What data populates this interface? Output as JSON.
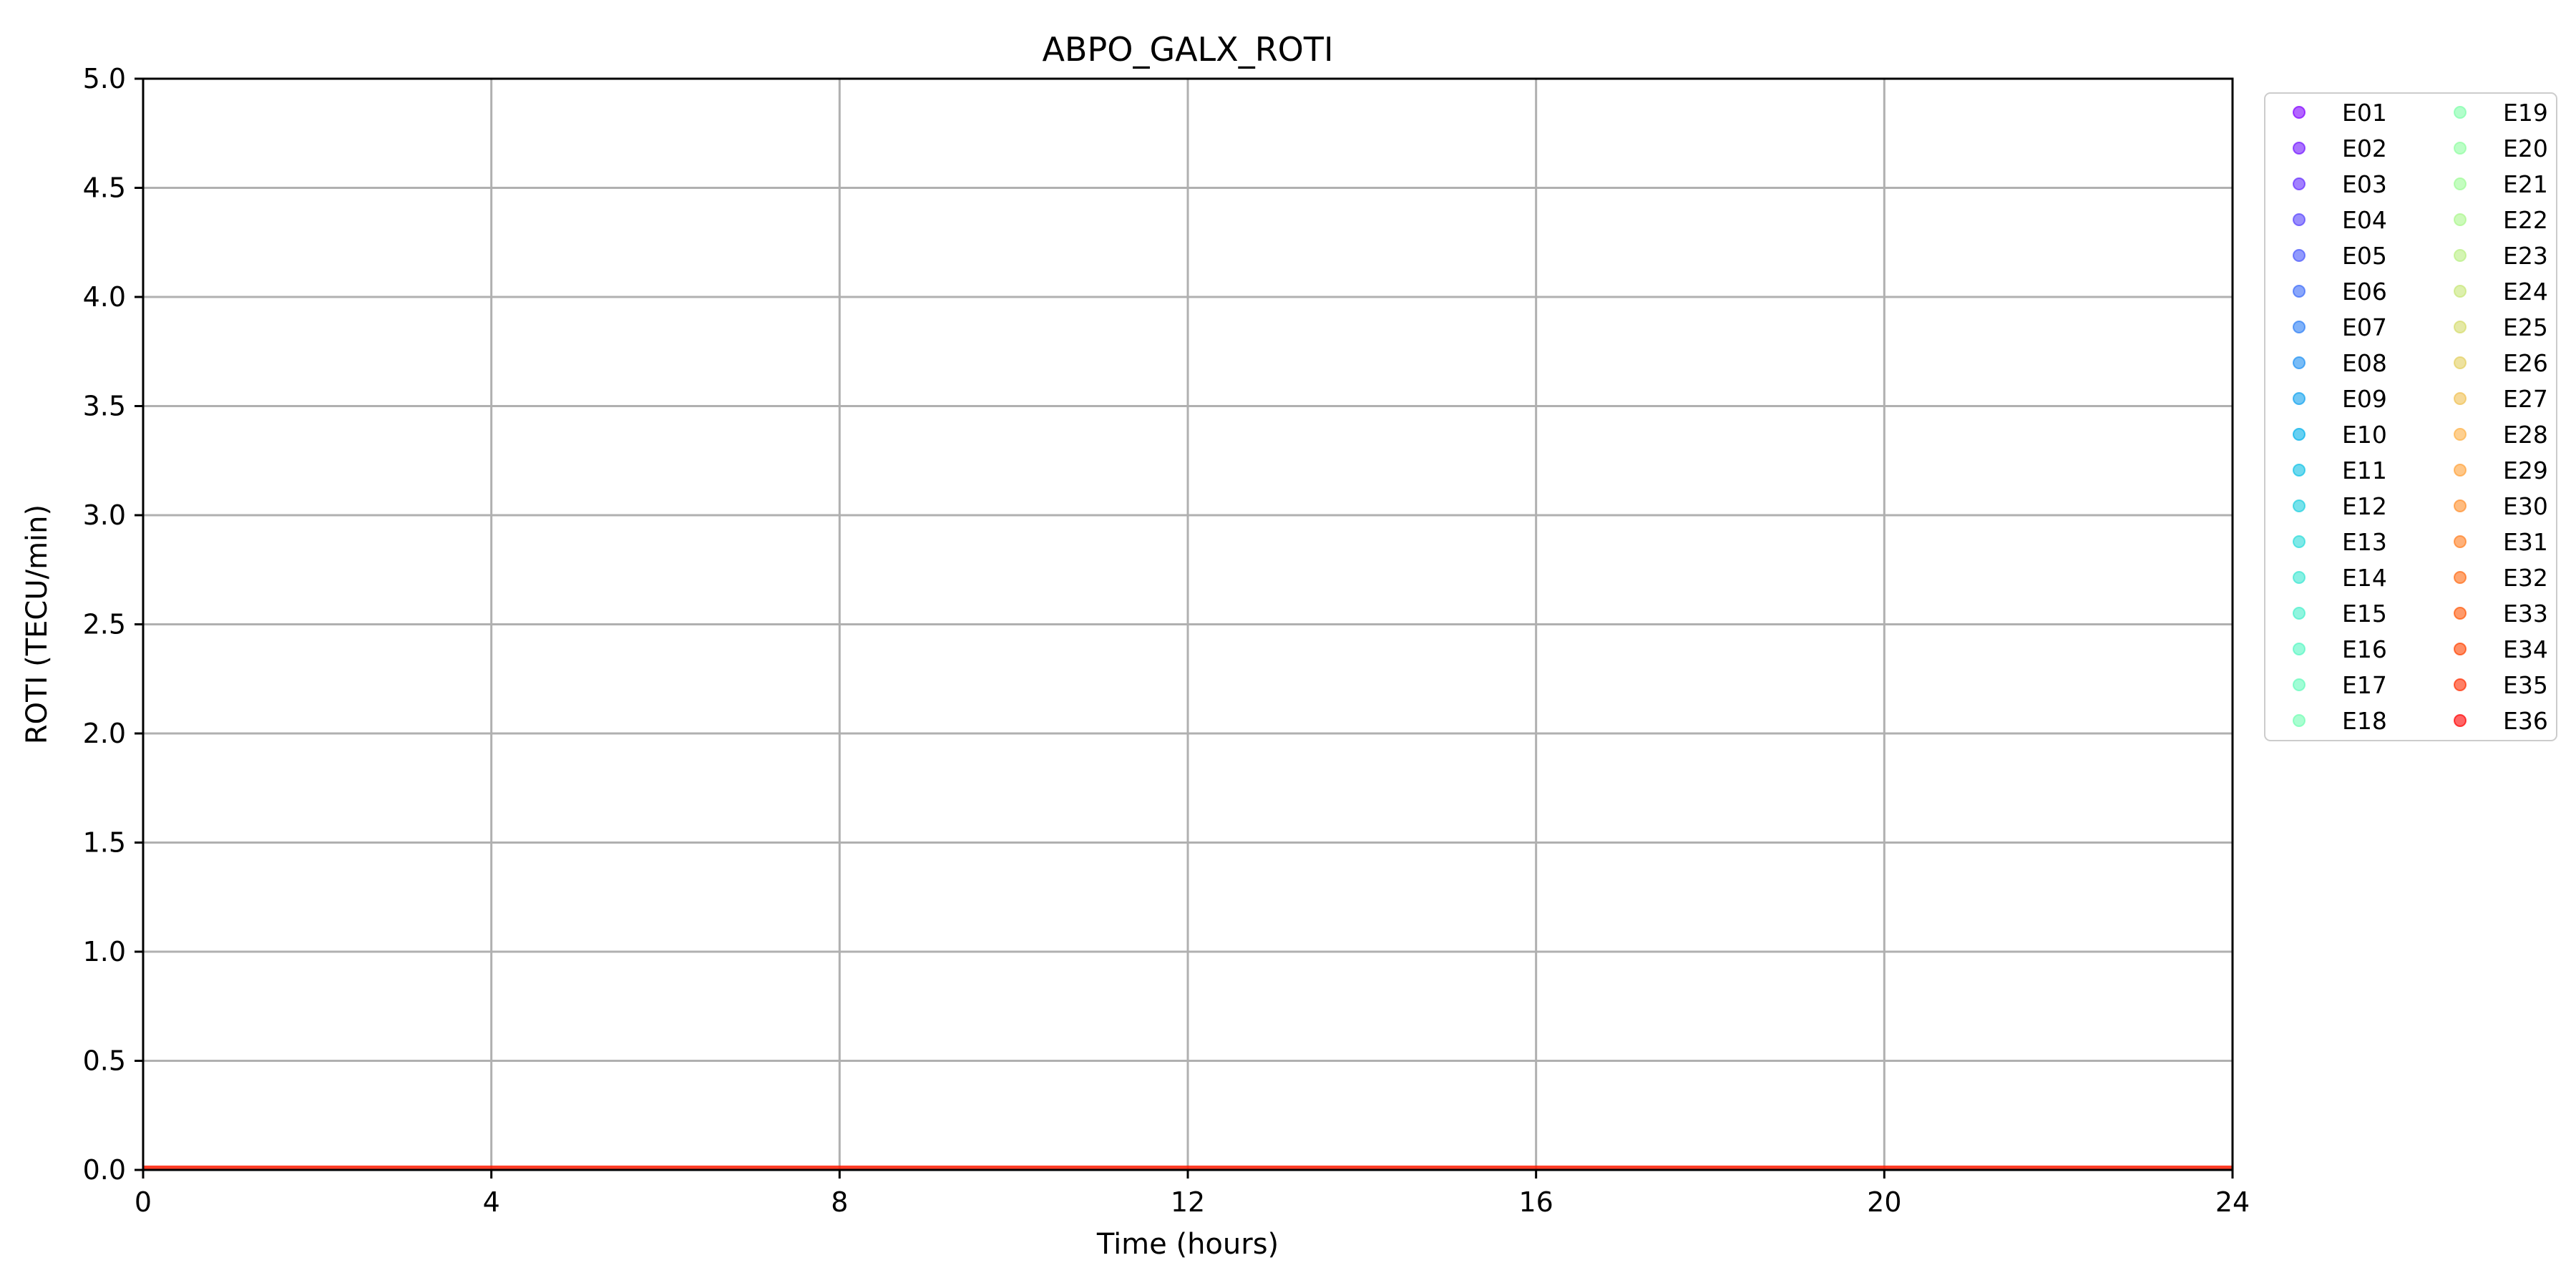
{
  "chart_data": {
    "type": "scatter",
    "title": "ABPO_GALX_ROTI",
    "xlabel": "Time (hours)",
    "ylabel": "ROTI (TECU/min)",
    "xlim": [
      0,
      24
    ],
    "ylim": [
      0,
      5
    ],
    "xticks": [
      0,
      4,
      8,
      12,
      16,
      20,
      24
    ],
    "xtick_labels": [
      "0",
      "4",
      "8",
      "12",
      "16",
      "20",
      "24"
    ],
    "yticks": [
      0,
      0.5,
      1,
      1.5,
      2,
      2.5,
      3,
      3.5,
      4,
      4.5,
      5
    ],
    "ytick_labels": [
      "0.0",
      "0.5",
      "1.0",
      "1.5",
      "2.0",
      "2.5",
      "3.0",
      "3.5",
      "4.0",
      "4.5",
      "5.0"
    ],
    "grid": true,
    "legend_position": "outside right",
    "legend_columns": 2,
    "series": [
      {
        "name": "E01",
        "color": "#8000ff"
      },
      {
        "name": "E02",
        "color": "#7216ff"
      },
      {
        "name": "E03",
        "color": "#642cfe"
      },
      {
        "name": "E04",
        "color": "#5642fc"
      },
      {
        "name": "E05",
        "color": "#4856fb"
      },
      {
        "name": "E06",
        "color": "#3a6af8"
      },
      {
        "name": "E07",
        "color": "#2c7ef5"
      },
      {
        "name": "E08",
        "color": "#1e90f2"
      },
      {
        "name": "E09",
        "color": "#10a1ee"
      },
      {
        "name": "E10",
        "color": "#02b1e9"
      },
      {
        "name": "E11",
        "color": "#0ec0e4"
      },
      {
        "name": "E12",
        "color": "#1ccede"
      },
      {
        "name": "E13",
        "color": "#2adbd8"
      },
      {
        "name": "E14",
        "color": "#38e6d1"
      },
      {
        "name": "E15",
        "color": "#46efca"
      },
      {
        "name": "E16",
        "color": "#54f6c2"
      },
      {
        "name": "E17",
        "color": "#62fbba"
      },
      {
        "name": "E18",
        "color": "#70feb2"
      },
      {
        "name": "E19",
        "color": "#7efea9"
      },
      {
        "name": "E20",
        "color": "#8efea0"
      },
      {
        "name": "E21",
        "color": "#9cfb96"
      },
      {
        "name": "E22",
        "color": "#aaf68c"
      },
      {
        "name": "E23",
        "color": "#b8ef81"
      },
      {
        "name": "E24",
        "color": "#c6e676"
      },
      {
        "name": "E25",
        "color": "#d4db6a"
      },
      {
        "name": "E26",
        "color": "#e2ce5f"
      },
      {
        "name": "E27",
        "color": "#f0c052"
      },
      {
        "name": "E28",
        "color": "#feb146"
      },
      {
        "name": "E29",
        "color": "#ffa139"
      },
      {
        "name": "E30",
        "color": "#ff8f2c"
      },
      {
        "name": "E31",
        "color": "#ff7d1f"
      },
      {
        "name": "E32",
        "color": "#ff6a12"
      },
      {
        "name": "E33",
        "color": "#ff5606"
      },
      {
        "name": "E34",
        "color": "#ff4200"
      },
      {
        "name": "E35",
        "color": "#ff2c00"
      },
      {
        "name": "E36",
        "color": "#ff0000"
      }
    ],
    "data_note_values": {
      "x_range": [
        0,
        24
      ],
      "y_value": 0.01
    },
    "colors": {
      "grid": "#b0b0b0",
      "axes": "#000000",
      "data_band": "#ff1a00"
    }
  }
}
